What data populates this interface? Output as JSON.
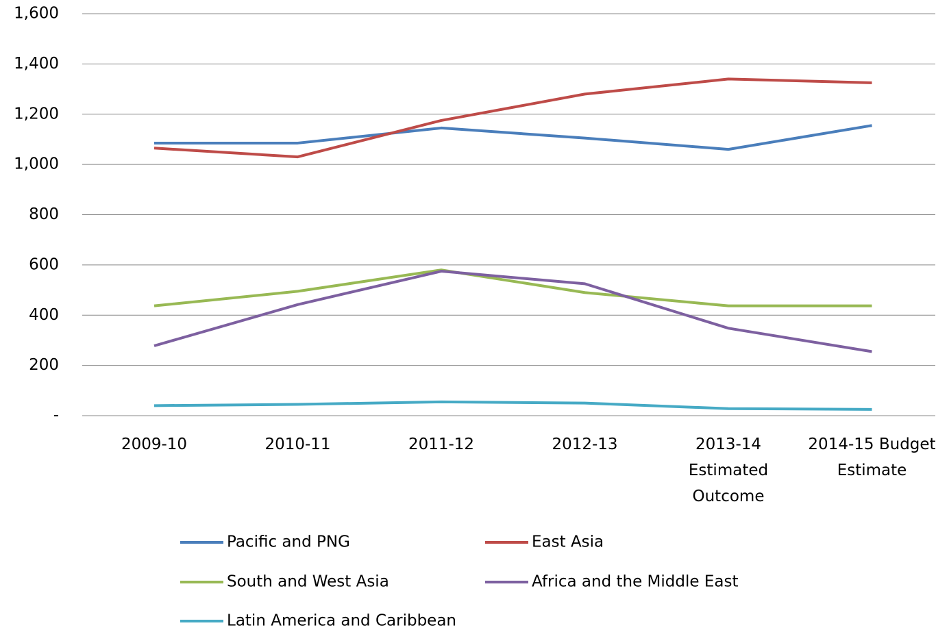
{
  "chart_data": {
    "type": "line",
    "categories": [
      "2009-10",
      "2010-11",
      "2011-12",
      "2012-13",
      "2013-14 Estimated Outcome",
      "2014-15 Budget Estimate"
    ],
    "series": [
      {
        "name": "Pacific and PNG",
        "color": "#4a7ebb",
        "values": [
          1085,
          1085,
          1145,
          1105,
          1060,
          1155
        ]
      },
      {
        "name": "East Asia",
        "color": "#be4b48",
        "values": [
          1065,
          1030,
          1175,
          1280,
          1340,
          1325
        ]
      },
      {
        "name": "South and West Asia",
        "color": "#98b954",
        "values": [
          437,
          495,
          580,
          490,
          437,
          437
        ]
      },
      {
        "name": "Africa and the Middle East",
        "color": "#7d60a0",
        "values": [
          278,
          442,
          575,
          525,
          348,
          255
        ]
      },
      {
        "name": "Latin America and Caribbean",
        "color": "#46aac5",
        "values": [
          40,
          45,
          55,
          50,
          28,
          25
        ]
      }
    ],
    "ylim": [
      0,
      1600
    ],
    "yticks": [
      {
        "value": 0,
        "label": "-"
      },
      200,
      400,
      600,
      800,
      {
        "value": 1000,
        "label": "1,000"
      },
      {
        "value": 1200,
        "label": "1,200"
      },
      {
        "value": 1400,
        "label": "1,400"
      },
      {
        "value": 1600,
        "label": "1,600"
      }
    ],
    "grid": true,
    "legend": "bottom"
  }
}
